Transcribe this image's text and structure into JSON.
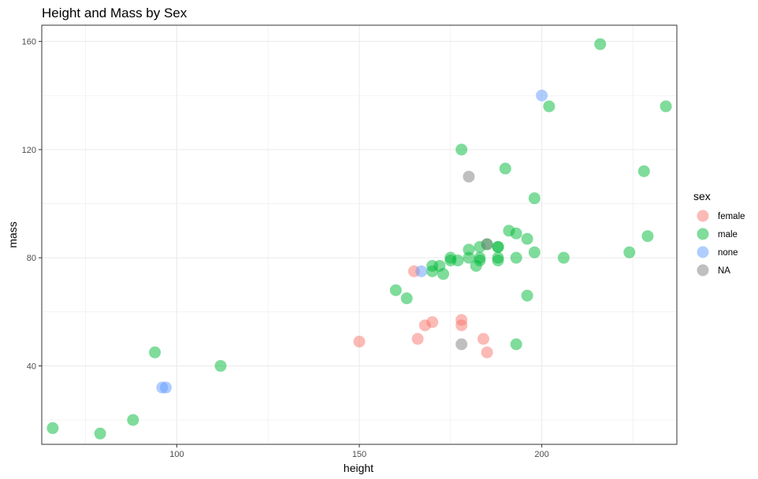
{
  "chart_data": {
    "type": "scatter",
    "title": "Height and Mass by Sex",
    "xlabel": "height",
    "ylabel": "mass",
    "xlim": [
      63,
      237
    ],
    "ylim": [
      11,
      166
    ],
    "x_ticks": [
      100,
      150,
      200
    ],
    "y_ticks": [
      40,
      80,
      120,
      160
    ],
    "x_minor_ticks": [
      75,
      125,
      175,
      225
    ],
    "y_minor_ticks": [
      20,
      60,
      100,
      140
    ],
    "grid": true,
    "point_opacity": 0.5,
    "legend": {
      "title": "sex",
      "position": "right",
      "entries": [
        {
          "label": "female",
          "color": "#F8766D"
        },
        {
          "label": "male",
          "color": "#00BA38"
        },
        {
          "label": "none",
          "color": "#619CFF"
        },
        {
          "label": "NA",
          "color": "#808080"
        }
      ]
    },
    "series": [
      {
        "name": "female",
        "color": "#F8766D",
        "points": [
          [
            150,
            49
          ],
          [
            165,
            75
          ],
          [
            166,
            50
          ],
          [
            168,
            55
          ],
          [
            170,
            56.2
          ],
          [
            178,
            55
          ],
          [
            178,
            57
          ],
          [
            184,
            50
          ],
          [
            185,
            45
          ]
        ]
      },
      {
        "name": "male",
        "color": "#00BA38",
        "points": [
          [
            66,
            17
          ],
          [
            79,
            15
          ],
          [
            88,
            20
          ],
          [
            94,
            45
          ],
          [
            112,
            40
          ],
          [
            160,
            68
          ],
          [
            163,
            65
          ],
          [
            170,
            75
          ],
          [
            170,
            77
          ],
          [
            172,
            77
          ],
          [
            173,
            74
          ],
          [
            175,
            79
          ],
          [
            175,
            80
          ],
          [
            177,
            79
          ],
          [
            178,
            120
          ],
          [
            180,
            80
          ],
          [
            180,
            83
          ],
          [
            182,
            77
          ],
          [
            183,
            79
          ],
          [
            183,
            80
          ],
          [
            183,
            84
          ],
          [
            185,
            85
          ],
          [
            188,
            79
          ],
          [
            188,
            80
          ],
          [
            188,
            84
          ],
          [
            188,
            84
          ],
          [
            190,
            113
          ],
          [
            191,
            90
          ],
          [
            193,
            80
          ],
          [
            193,
            89
          ],
          [
            193,
            48
          ],
          [
            196,
            87
          ],
          [
            196,
            66
          ],
          [
            198,
            102
          ],
          [
            198,
            82
          ],
          [
            202,
            136
          ],
          [
            206,
            80
          ],
          [
            216,
            159
          ],
          [
            224,
            82
          ],
          [
            228,
            112
          ],
          [
            229,
            88
          ],
          [
            234,
            136
          ]
        ]
      },
      {
        "name": "none",
        "color": "#619CFF",
        "points": [
          [
            96,
            32
          ],
          [
            97,
            32
          ],
          [
            167,
            75
          ],
          [
            200,
            140
          ]
        ]
      },
      {
        "name": "NA",
        "color": "#808080",
        "points": [
          [
            178,
            48
          ],
          [
            180,
            110
          ],
          [
            185,
            85
          ]
        ]
      }
    ]
  }
}
